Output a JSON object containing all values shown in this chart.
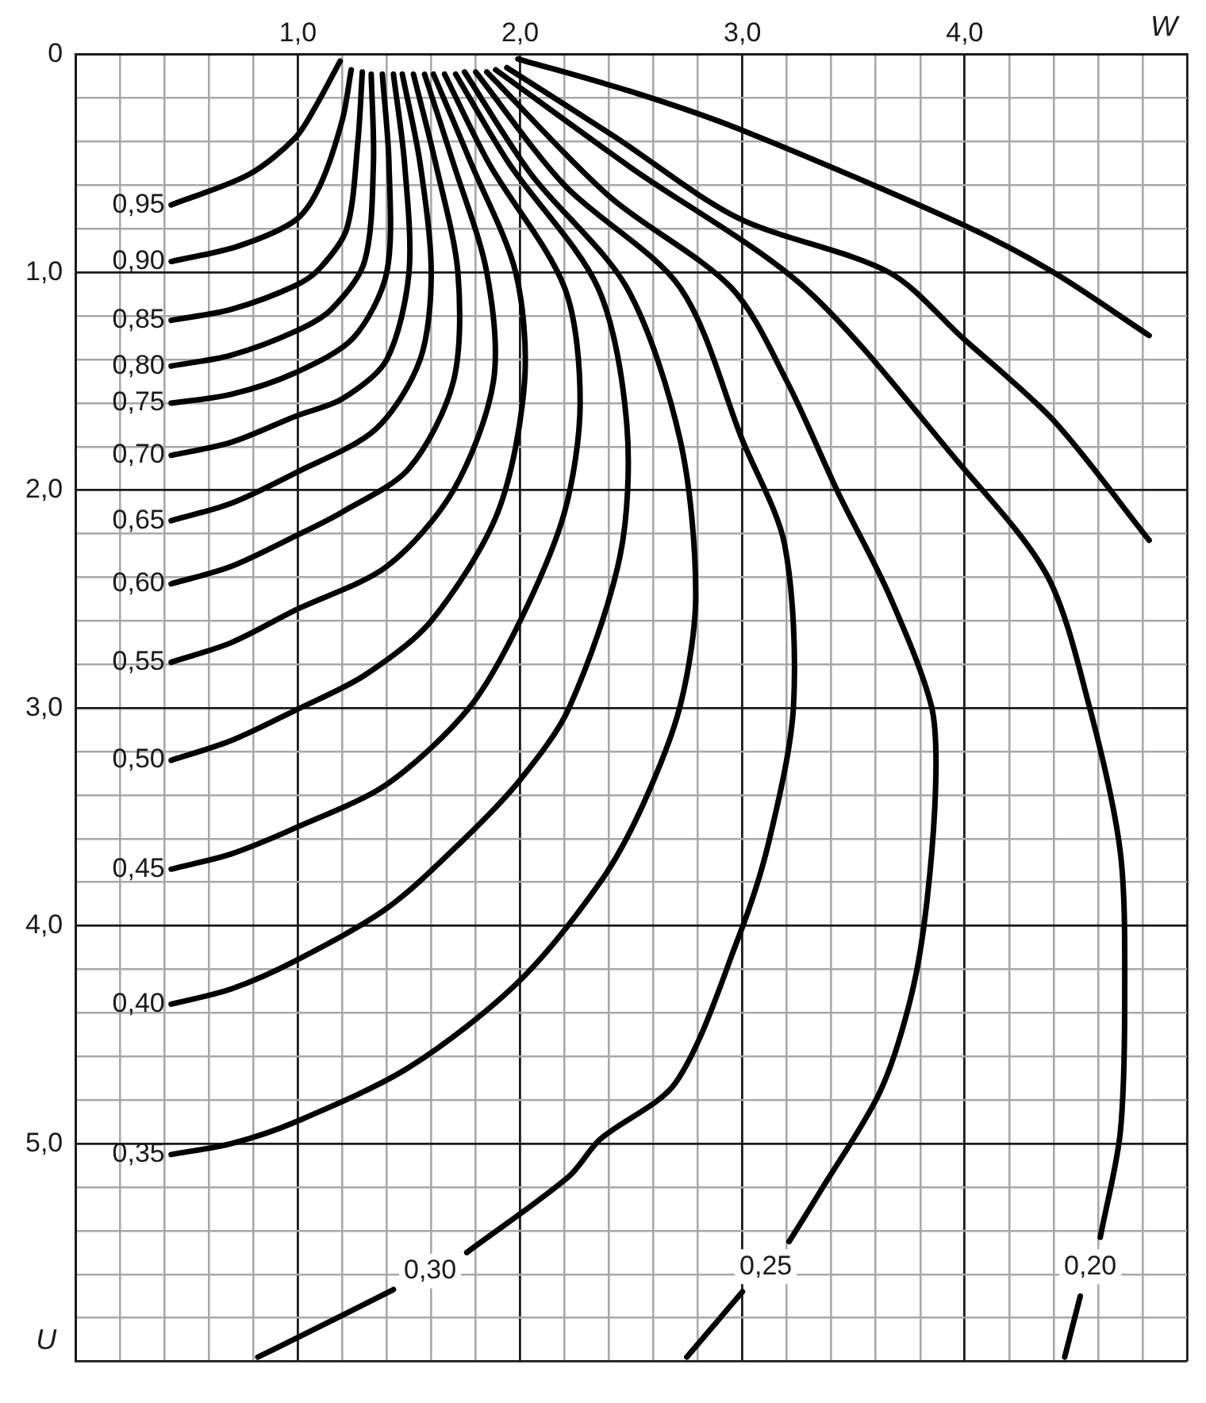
{
  "chart_data": {
    "type": "line",
    "xlabel": "W",
    "ylabel": "U",
    "xlim": [
      0,
      5
    ],
    "ylim": [
      6,
      0
    ],
    "grid": true,
    "legend": false,
    "xticks": [
      {
        "value": 0,
        "label": null
      },
      {
        "value": 0.2,
        "label": null
      },
      {
        "value": 0.4,
        "label": null
      },
      {
        "value": 0.6,
        "label": null
      },
      {
        "value": 0.8,
        "label": null
      },
      {
        "value": 1,
        "label": "1,0"
      },
      {
        "value": 1.2,
        "label": null
      },
      {
        "value": 1.4,
        "label": null
      },
      {
        "value": 1.6,
        "label": null
      },
      {
        "value": 1.8,
        "label": null
      },
      {
        "value": 2,
        "label": "2,0"
      },
      {
        "value": 2.2,
        "label": null
      },
      {
        "value": 2.4,
        "label": null
      },
      {
        "value": 2.6,
        "label": null
      },
      {
        "value": 2.8,
        "label": null
      },
      {
        "value": 3,
        "label": "3,0"
      },
      {
        "value": 3.2,
        "label": null
      },
      {
        "value": 3.4,
        "label": null
      },
      {
        "value": 3.6,
        "label": null
      },
      {
        "value": 3.8,
        "label": null
      },
      {
        "value": 4,
        "label": "4,0"
      },
      {
        "value": 4.2,
        "label": null
      },
      {
        "value": 4.4,
        "label": null
      },
      {
        "value": 4.6,
        "label": null
      },
      {
        "value": 4.8,
        "label": null
      },
      {
        "value": 5,
        "label": null
      }
    ],
    "yticks": [
      {
        "value": 0,
        "label": "0"
      },
      {
        "value": 0.2,
        "label": null
      },
      {
        "value": 0.4,
        "label": null
      },
      {
        "value": 0.6,
        "label": null
      },
      {
        "value": 0.8,
        "label": null
      },
      {
        "value": 1,
        "label": "1,0"
      },
      {
        "value": 1.2,
        "label": null
      },
      {
        "value": 1.4,
        "label": null
      },
      {
        "value": 1.6,
        "label": null
      },
      {
        "value": 1.8,
        "label": null
      },
      {
        "value": 2,
        "label": "2,0"
      },
      {
        "value": 2.2,
        "label": null
      },
      {
        "value": 2.4,
        "label": null
      },
      {
        "value": 2.6,
        "label": null
      },
      {
        "value": 2.8,
        "label": null
      },
      {
        "value": 3,
        "label": "3,0"
      },
      {
        "value": 3.2,
        "label": null
      },
      {
        "value": 3.4,
        "label": null
      },
      {
        "value": 3.6,
        "label": null
      },
      {
        "value": 3.8,
        "label": null
      },
      {
        "value": 4,
        "label": "4,0"
      },
      {
        "value": 4.2,
        "label": null
      },
      {
        "value": 4.4,
        "label": null
      },
      {
        "value": 4.6,
        "label": null
      },
      {
        "value": 4.8,
        "label": null
      },
      {
        "value": 5,
        "label": "5,0"
      },
      {
        "value": 5.2,
        "label": null
      },
      {
        "value": 5.4,
        "label": null
      },
      {
        "value": 5.6,
        "label": null
      },
      {
        "value": 5.8,
        "label": null
      },
      {
        "value": 6,
        "label": null
      }
    ],
    "series": [
      {
        "name": "0,95",
        "color": "#000000",
        "x": [
          1.19,
          1.09,
          0.99,
          0.78,
          0.43
        ],
        "values": [
          0.03,
          0.22,
          0.38,
          0.55,
          0.69
        ]
      },
      {
        "name": "0,90",
        "color": "#000000",
        "x": [
          1.24,
          1.2,
          1.1,
          0.99,
          0.73,
          0.43
        ],
        "values": [
          0.07,
          0.3,
          0.6,
          0.76,
          0.88,
          0.95
        ]
      },
      {
        "name": "0,85",
        "color": "#000000",
        "x": [
          1.29,
          1.27,
          1.22,
          1.1,
          0.99,
          0.7,
          0.43
        ],
        "values": [
          0.08,
          0.4,
          0.8,
          0.98,
          1.06,
          1.17,
          1.22
        ]
      },
      {
        "name": "0,80",
        "color": "#000000",
        "x": [
          1.33,
          1.34,
          1.3,
          1.15,
          0.99,
          0.7,
          0.43
        ],
        "values": [
          0.09,
          0.5,
          0.95,
          1.17,
          1.27,
          1.38,
          1.43
        ]
      },
      {
        "name": "0,75",
        "color": "#000000",
        "x": [
          1.38,
          1.41,
          1.4,
          1.25,
          0.99,
          0.7,
          0.43
        ],
        "values": [
          0.09,
          0.5,
          1.0,
          1.3,
          1.46,
          1.56,
          1.6
        ]
      },
      {
        "name": "0,70",
        "color": "#000000",
        "x": [
          1.43,
          1.48,
          1.5,
          1.4,
          1.2,
          0.99,
          0.7,
          0.43
        ],
        "values": [
          0.09,
          0.5,
          1.0,
          1.4,
          1.58,
          1.66,
          1.78,
          1.84
        ]
      },
      {
        "name": "0,65",
        "color": "#000000",
        "x": [
          1.47,
          1.55,
          1.6,
          1.55,
          1.35,
          0.99,
          0.7,
          0.43
        ],
        "values": [
          0.09,
          0.5,
          1.0,
          1.4,
          1.72,
          1.92,
          2.06,
          2.14
        ]
      },
      {
        "name": "0,60",
        "color": "#000000",
        "x": [
          1.52,
          1.62,
          1.72,
          1.7,
          1.5,
          1.2,
          0.99,
          0.7,
          0.43
        ],
        "values": [
          0.09,
          0.5,
          1.0,
          1.5,
          1.9,
          2.1,
          2.21,
          2.35,
          2.43
        ]
      },
      {
        "name": "0,55",
        "color": "#000000",
        "x": [
          1.57,
          1.7,
          1.85,
          1.88,
          1.7,
          1.4,
          0.99,
          0.7,
          0.43
        ],
        "values": [
          0.09,
          0.5,
          1.0,
          1.5,
          2.0,
          2.35,
          2.55,
          2.7,
          2.79
        ]
      },
      {
        "name": "0,50",
        "color": "#000000",
        "x": [
          1.61,
          1.78,
          1.98,
          2.02,
          1.9,
          1.6,
          1.3,
          0.99,
          0.7,
          0.43
        ],
        "values": [
          0.09,
          0.5,
          1.0,
          1.5,
          2.1,
          2.6,
          2.85,
          3.01,
          3.15,
          3.24
        ]
      },
      {
        "name": "0,45",
        "color": "#000000",
        "x": [
          1.66,
          1.86,
          2.2,
          2.27,
          2.2,
          2.0,
          1.77,
          1.4,
          0.99,
          0.7,
          0.43
        ],
        "values": [
          0.09,
          0.5,
          1.07,
          1.6,
          2.1,
          2.6,
          3.0,
          3.35,
          3.55,
          3.67,
          3.74
        ]
      },
      {
        "name": "0,40",
        "color": "#000000",
        "x": [
          1.71,
          1.95,
          2.35,
          2.48,
          2.45,
          2.22,
          2.0,
          1.74,
          1.4,
          0.99,
          0.7,
          0.43
        ],
        "values": [
          0.09,
          0.5,
          1.07,
          1.7,
          2.3,
          3.0,
          3.33,
          3.61,
          3.92,
          4.16,
          4.29,
          4.36
        ]
      },
      {
        "name": "0,35",
        "color": "#000000",
        "x": [
          1.75,
          2.05,
          2.48,
          2.72,
          2.79,
          2.72,
          2.55,
          2.36,
          1.99,
          1.5,
          0.99,
          0.7,
          0.43
        ],
        "values": [
          0.08,
          0.55,
          1.07,
          1.77,
          2.48,
          2.99,
          3.45,
          3.8,
          4.26,
          4.65,
          4.9,
          5.0,
          5.05
        ]
      },
      {
        "name": "0,30",
        "color": "#000000",
        "x": [
          1.8,
          2.2,
          2.72,
          3.0,
          3.19,
          3.23,
          3.12,
          2.98,
          2.7,
          2.36,
          2.22,
          1.76,
          1.6,
          1.43,
          1.0,
          0.82
        ],
        "values": [
          0.08,
          0.6,
          1.07,
          1.77,
          2.25,
          2.99,
          3.61,
          4.06,
          4.72,
          4.98,
          5.15,
          5.5,
          null,
          5.67,
          5.89,
          5.98
        ]
      },
      {
        "name": "0,25",
        "color": "#000000",
        "x": [
          1.85,
          2.4,
          2.95,
          3.2,
          3.43,
          3.66,
          3.85,
          3.87,
          3.83,
          3.76,
          3.62,
          3.35,
          3.21,
          3.1,
          3.0,
          2.75
        ],
        "values": [
          0.08,
          0.65,
          1.07,
          1.5,
          2.01,
          2.48,
          2.99,
          3.33,
          3.89,
          4.32,
          4.76,
          5.22,
          5.45,
          null,
          5.68,
          5.98
        ]
      },
      {
        "name": "0,20",
        "color": "#000000",
        "x": [
          1.89,
          2.5,
          3.28,
          3.97,
          4.37,
          4.56,
          4.7,
          4.72,
          4.7,
          4.61,
          4.57,
          4.52,
          4.45
        ],
        "values": [
          0.07,
          0.52,
          1.07,
          1.87,
          2.39,
          2.99,
          3.66,
          4.32,
          4.95,
          5.43,
          null,
          5.7,
          5.98
        ]
      },
      {
        "color": "#000000",
        "x": [
          1.94,
          2.43,
          2.98,
          3.66,
          3.99,
          4.4,
          4.83
        ],
        "values": [
          0.06,
          0.38,
          0.75,
          1.0,
          1.3,
          1.68,
          2.23
        ]
      },
      {
        "color": "#000000",
        "x": [
          1.99,
          2.5,
          2.98,
          3.99,
          4.4,
          4.83
        ],
        "values": [
          0.02,
          0.17,
          0.34,
          0.78,
          1.0,
          1.29
        ]
      }
    ]
  }
}
